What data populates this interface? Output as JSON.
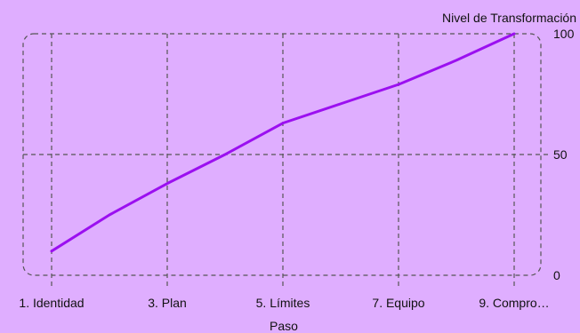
{
  "chart_data": {
    "type": "line",
    "title": "",
    "xlabel": "Paso",
    "ylabel": "Nivel de Transformación",
    "x": [
      1,
      2,
      3,
      4,
      5,
      6,
      7,
      8,
      9
    ],
    "x_tick_labels": [
      "1. Identidad",
      "3. Plan",
      "5. Límites",
      "7. Equipo",
      "9. Compro…"
    ],
    "x_tick_positions": [
      1,
      3,
      5,
      7,
      9
    ],
    "series": [
      {
        "values": [
          10,
          25,
          38,
          50,
          63,
          71,
          79,
          89,
          100
        ]
      }
    ],
    "ylim": [
      0,
      100
    ],
    "y_ticks": [
      0,
      50,
      100
    ],
    "y_axis_side": "right",
    "grid": true,
    "line_color": "#9b10f0",
    "grid_color": "#555555",
    "background_color": "#dfaeff"
  }
}
